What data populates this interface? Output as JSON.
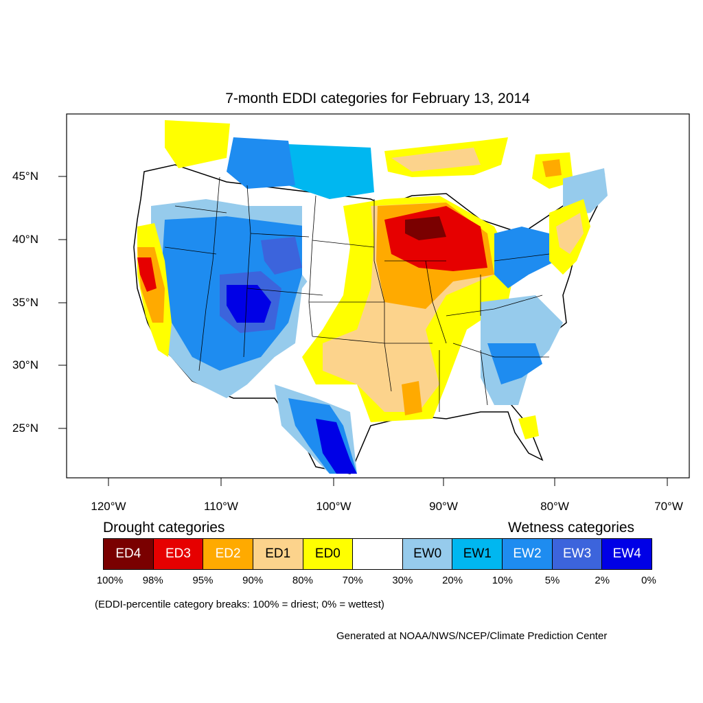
{
  "title": "7-month EDDI categories for February 13, 2014",
  "lat_labels": [
    "45°N",
    "40°N",
    "35°N",
    "30°N",
    "25°N"
  ],
  "lon_labels": [
    "120°W",
    "110°W",
    "100°W",
    "90°W",
    "80°W",
    "70°W"
  ],
  "legend": {
    "drought_heading": "Drought categories",
    "wetness_heading": "Wetness categories",
    "categories": [
      {
        "label": "ED4",
        "color": "#7a0000",
        "text_color": "#ffffff"
      },
      {
        "label": "ED3",
        "color": "#e60000",
        "text_color": "#ffffff"
      },
      {
        "label": "ED2",
        "color": "#ffaa00",
        "text_color": "#ffffff"
      },
      {
        "label": "ED1",
        "color": "#fcd38c",
        "text_color": "#000000"
      },
      {
        "label": "ED0",
        "color": "#ffff00",
        "text_color": "#000000"
      },
      {
        "label": "",
        "color": "#ffffff",
        "text_color": "#000000"
      },
      {
        "label": "EW0",
        "color": "#96cbec",
        "text_color": "#000000"
      },
      {
        "label": "EW1",
        "color": "#00b7f0",
        "text_color": "#000000"
      },
      {
        "label": "EW2",
        "color": "#1e8cf0",
        "text_color": "#ffffff"
      },
      {
        "label": "EW3",
        "color": "#3c64dc",
        "text_color": "#ffffff"
      },
      {
        "label": "EW4",
        "color": "#0000e6",
        "text_color": "#ffffff"
      }
    ],
    "percent_labels": [
      "100%",
      "98%",
      "95%",
      "90%",
      "80%",
      "70%",
      "30%",
      "20%",
      "10%",
      "5%",
      "2%",
      "0%"
    ]
  },
  "note": "(EDDI-percentile category breaks: 100% = driest; 0% = wettest)",
  "credit": "Generated at NOAA/NWS/NCEP/Climate Prediction Center"
}
